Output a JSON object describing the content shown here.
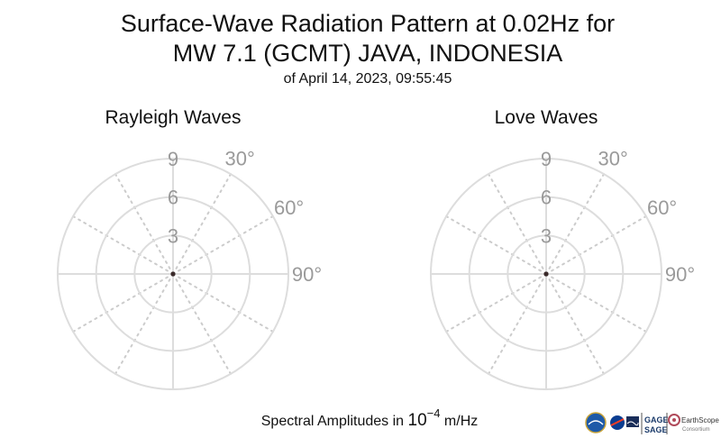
{
  "title_line1": "Surface-Wave Radiation Pattern at 0.02Hz for",
  "title_line2": "MW 7.1 (GCMT) JAVA, INDONESIA",
  "subtitle": "of April 14, 2023, 09:55:45",
  "footer": {
    "prefix": "Spectral Amplitudes in ",
    "base": "10",
    "exponent": "−4",
    "unit": " m/Hz"
  },
  "logos": {
    "gage": "GAGE",
    "sage": "SAGE",
    "earthscope": "EarthScope",
    "consortium": "Consortium"
  },
  "colors": {
    "grid_solid": "#dddddd",
    "grid_dotted": "#cccccc",
    "tick_text": "#9a9a9a",
    "center_point": "#3a2a2a"
  },
  "chart_data": [
    {
      "type": "polar",
      "title": "Rayleigh Waves",
      "radial_ticks": [
        3,
        6,
        9
      ],
      "radial_tick_labels": [
        "3",
        "6",
        "9"
      ],
      "rlim": [
        0,
        9
      ],
      "angular_tick_labels": [
        "30°",
        "60°",
        "90°"
      ],
      "angular_tick_values_deg": [
        30,
        60,
        90
      ],
      "spoke_step_deg": 30,
      "series": [
        {
          "r": [
            0
          ],
          "theta_deg": [
            0
          ]
        }
      ]
    },
    {
      "type": "polar",
      "title": "Love Waves",
      "radial_ticks": [
        3,
        6,
        9
      ],
      "radial_tick_labels": [
        "3",
        "6",
        "9"
      ],
      "rlim": [
        0,
        9
      ],
      "angular_tick_labels": [
        "30°",
        "60°",
        "90°"
      ],
      "angular_tick_values_deg": [
        30,
        60,
        90
      ],
      "spoke_step_deg": 30,
      "series": [
        {
          "r": [
            0
          ],
          "theta_deg": [
            0
          ]
        }
      ]
    }
  ]
}
